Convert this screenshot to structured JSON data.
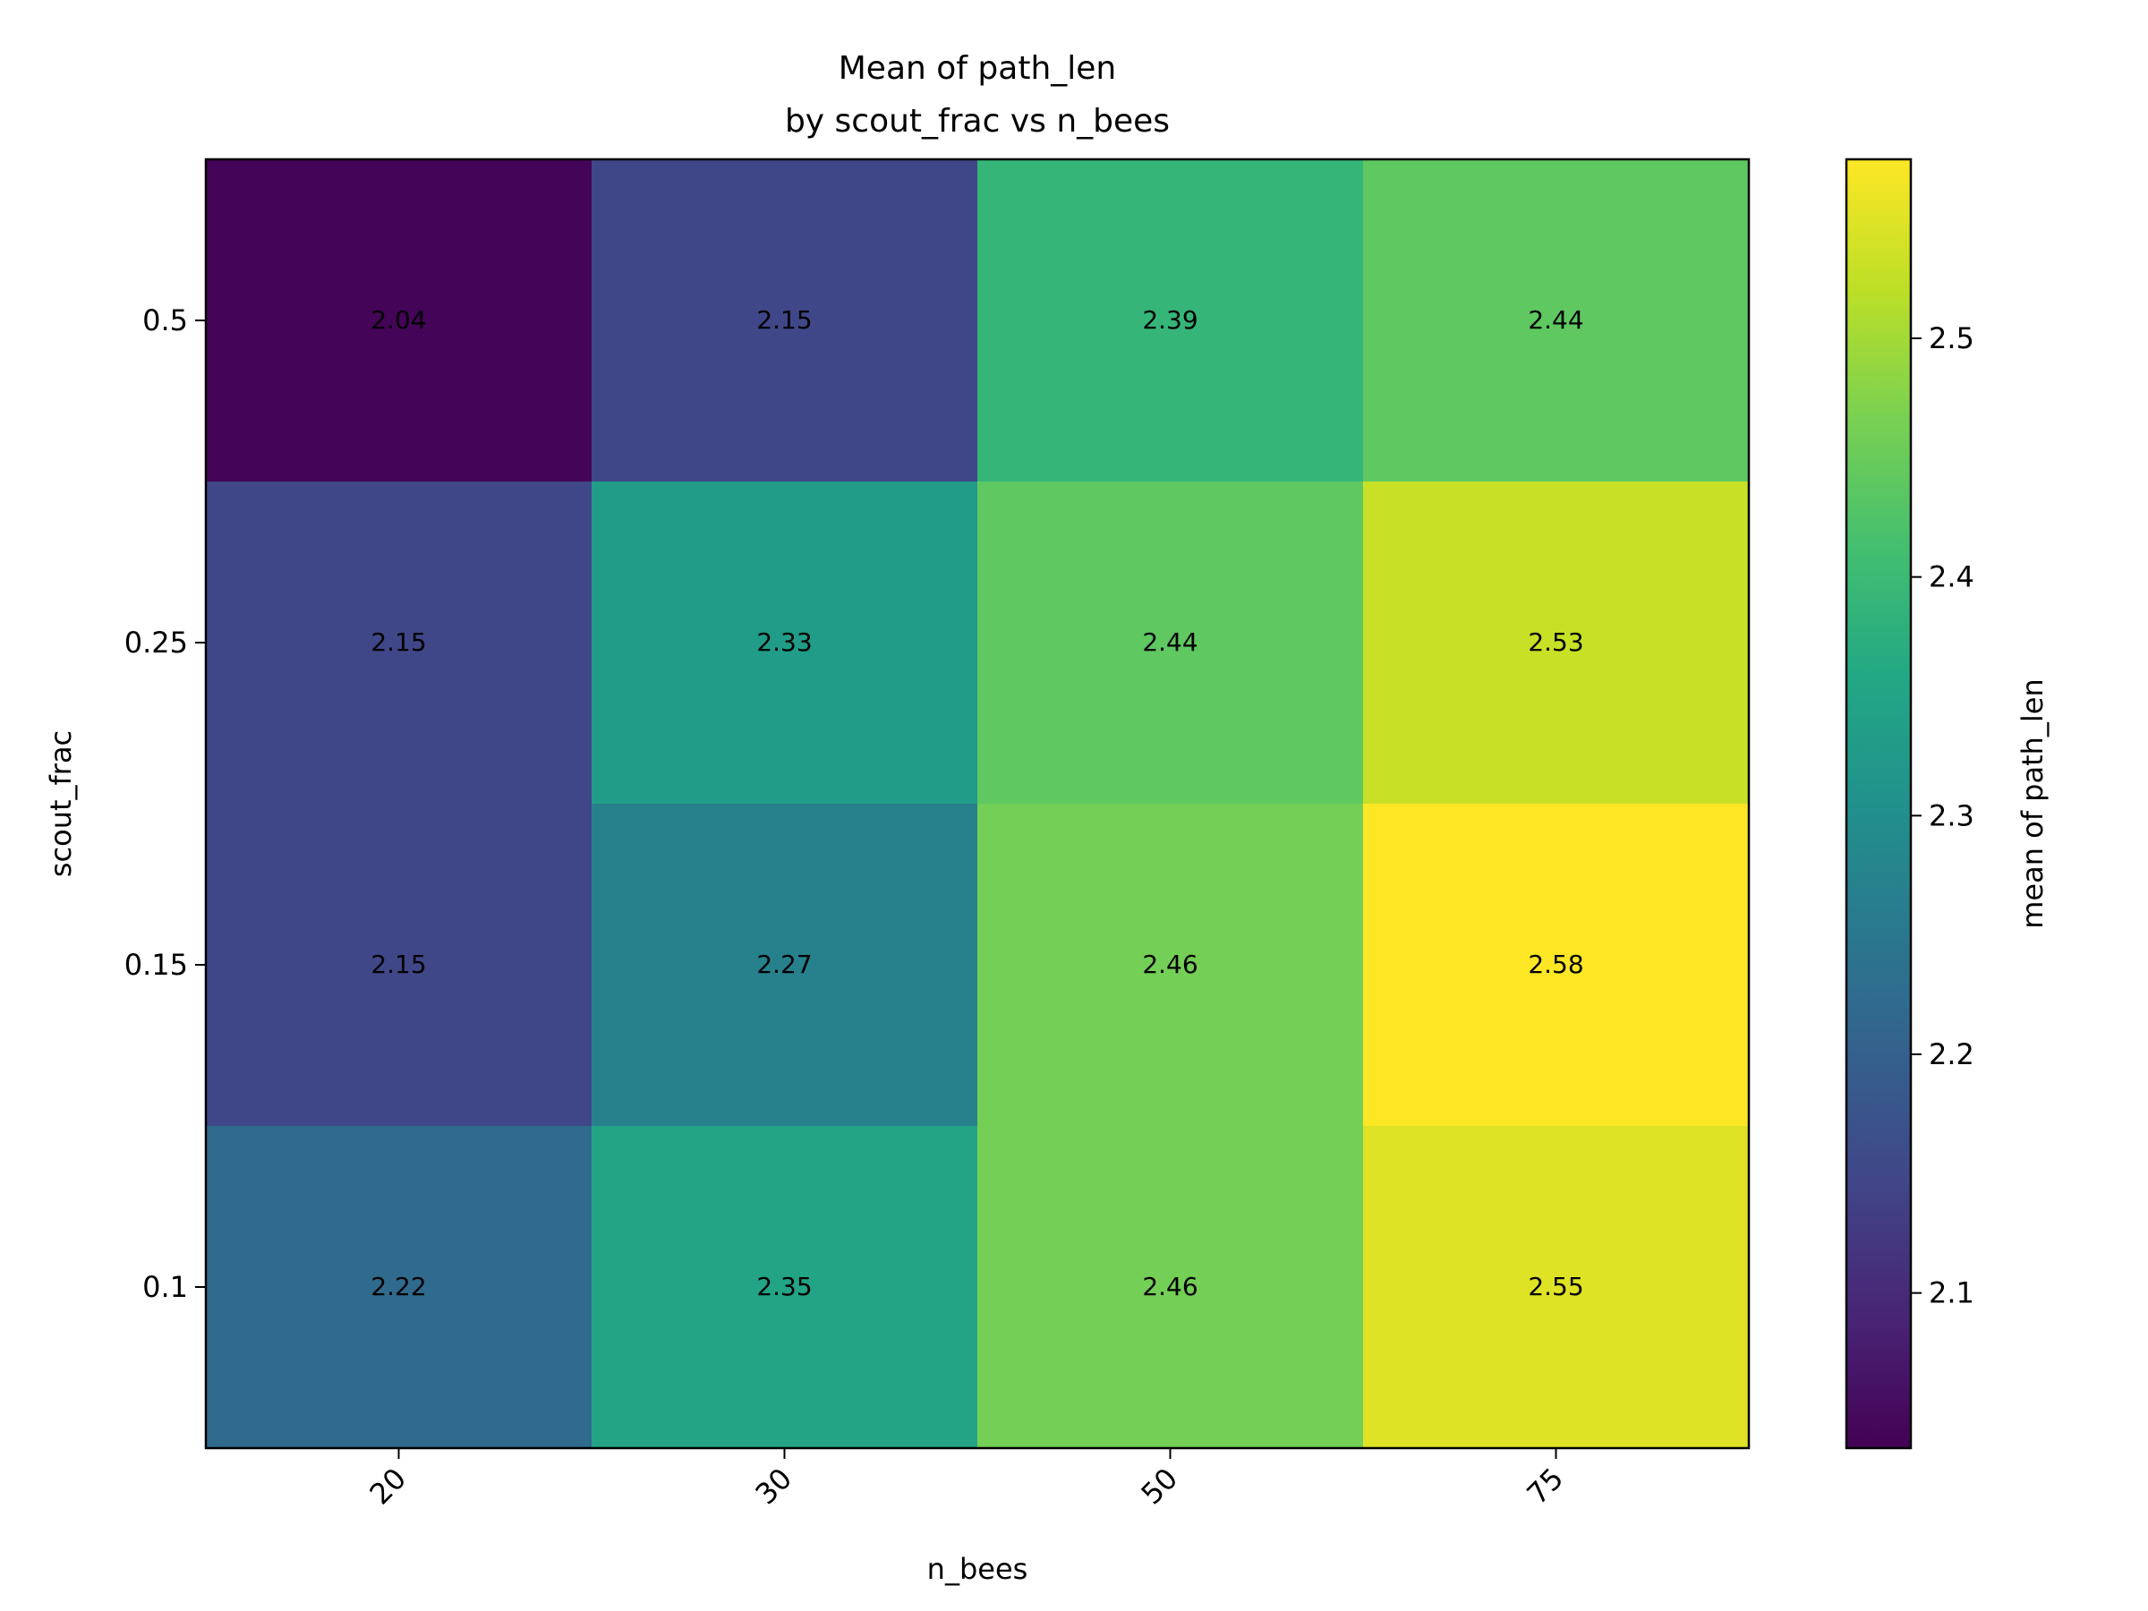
{
  "chart_data": {
    "type": "heatmap",
    "title": "Mean of path_len",
    "subtitle": "by scout_frac vs n_bees",
    "xlabel": "n_bees",
    "ylabel": "scout_frac",
    "x_categories": [
      "20",
      "30",
      "50",
      "75"
    ],
    "y_categories": [
      "0.5",
      "0.25",
      "0.15",
      "0.1"
    ],
    "values": [
      [
        2.04,
        2.15,
        2.39,
        2.44
      ],
      [
        2.15,
        2.33,
        2.44,
        2.53
      ],
      [
        2.15,
        2.27,
        2.46,
        2.58
      ],
      [
        2.22,
        2.35,
        2.46,
        2.55
      ]
    ],
    "value_labels": [
      [
        "2.04",
        "2.15",
        "2.39",
        "2.44"
      ],
      [
        "2.15",
        "2.33",
        "2.44",
        "2.53"
      ],
      [
        "2.15",
        "2.27",
        "2.46",
        "2.58"
      ],
      [
        "2.22",
        "2.35",
        "2.46",
        "2.55"
      ]
    ],
    "colorbar": {
      "label": "mean of path_len",
      "range": [
        2.035,
        2.575
      ],
      "ticks": [
        2.1,
        2.2,
        2.3,
        2.4,
        2.5
      ],
      "tick_labels": [
        "2.1",
        "2.2",
        "2.3",
        "2.4",
        "2.5"
      ],
      "colormap": "viridis"
    },
    "grid": false
  }
}
